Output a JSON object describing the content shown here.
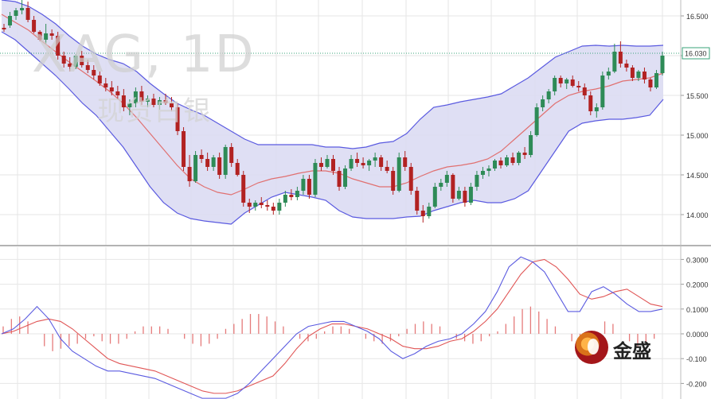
{
  "watermark": {
    "symbol": "XAG, 1D",
    "name_cn": "现货白银"
  },
  "brand": {
    "name": "金盛"
  },
  "price_panel": {
    "y_ticks": [
      "16.500",
      "16.000",
      "15.500",
      "15.000",
      "14.500",
      "14.000"
    ],
    "current_price_label": "16.030"
  },
  "macd_panel": {
    "y_ticks": [
      "0.3000",
      "0.2000",
      "0.1000",
      "0.0000",
      "-0.100",
      "-0.200"
    ]
  },
  "colors": {
    "up": "#2e8b57",
    "down": "#b22222",
    "band": "#5a5ae0",
    "band_fill": "#d9d9f2",
    "ma": "#e07070",
    "macd": "#5a5ae0",
    "signal": "#e05555",
    "hist": "#e57a7a",
    "price_line": "#3aa37a",
    "grid": "#e6e6e6",
    "text": "#333333"
  },
  "chart_data": [
    {
      "type": "candlestick",
      "indicators": [
        "Bollinger Bands (20,2)",
        "MA"
      ],
      "ylim": [
        13.65,
        16.65
      ],
      "current_price": 16.03,
      "candles": [
        [
          16.35,
          16.4,
          16.3,
          16.33
        ],
        [
          16.38,
          16.55,
          16.35,
          16.5
        ],
        [
          16.5,
          16.6,
          16.45,
          16.57
        ],
        [
          16.57,
          16.7,
          16.52,
          16.6
        ],
        [
          16.6,
          16.68,
          16.42,
          16.45
        ],
        [
          16.45,
          16.5,
          16.28,
          16.3
        ],
        [
          16.3,
          16.32,
          16.18,
          16.2
        ],
        [
          16.2,
          16.4,
          16.15,
          16.28
        ],
        [
          16.28,
          16.33,
          16.2,
          16.25
        ],
        [
          16.25,
          16.3,
          15.95,
          16.0
        ],
        [
          16.0,
          16.05,
          15.85,
          15.9
        ],
        [
          15.9,
          15.98,
          15.8,
          15.86
        ],
        [
          15.86,
          16.02,
          15.83,
          16.0
        ],
        [
          16.0,
          16.06,
          15.85,
          15.88
        ],
        [
          15.88,
          15.95,
          15.78,
          15.82
        ],
        [
          15.82,
          15.88,
          15.7,
          15.75
        ],
        [
          15.75,
          15.8,
          15.62,
          15.65
        ],
        [
          15.65,
          15.72,
          15.55,
          15.6
        ],
        [
          15.6,
          15.68,
          15.5,
          15.55
        ],
        [
          15.55,
          15.62,
          15.45,
          15.5
        ],
        [
          15.5,
          15.58,
          15.3,
          15.35
        ],
        [
          15.35,
          15.45,
          15.25,
          15.4
        ],
        [
          15.4,
          15.6,
          15.35,
          15.55
        ],
        [
          15.55,
          15.62,
          15.38,
          15.42
        ],
        [
          15.42,
          15.5,
          15.35,
          15.46
        ],
        [
          15.46,
          15.52,
          15.35,
          15.38
        ],
        [
          15.38,
          15.48,
          15.32,
          15.44
        ],
        [
          15.44,
          15.52,
          15.38,
          15.4
        ],
        [
          15.4,
          15.48,
          15.3,
          15.35
        ],
        [
          15.35,
          15.4,
          15.0,
          15.05
        ],
        [
          15.05,
          15.1,
          14.55,
          14.6
        ],
        [
          14.6,
          14.75,
          14.35,
          14.42
        ],
        [
          14.42,
          14.8,
          14.4,
          14.75
        ],
        [
          14.75,
          14.82,
          14.65,
          14.7
        ],
        [
          14.7,
          14.78,
          14.55,
          14.6
        ],
        [
          14.6,
          14.75,
          14.55,
          14.72
        ],
        [
          14.72,
          14.78,
          14.45,
          14.5
        ],
        [
          14.5,
          14.88,
          14.45,
          14.85
        ],
        [
          14.85,
          14.9,
          14.6,
          14.65
        ],
        [
          14.65,
          14.7,
          14.48,
          14.5
        ],
        [
          14.5,
          14.55,
          14.1,
          14.15
        ],
        [
          14.15,
          14.2,
          14.02,
          14.1
        ],
        [
          14.1,
          14.18,
          14.05,
          14.15
        ],
        [
          14.15,
          14.22,
          14.08,
          14.12
        ],
        [
          14.12,
          14.18,
          14.05,
          14.1
        ],
        [
          14.1,
          14.15,
          14.0,
          14.05
        ],
        [
          14.05,
          14.2,
          14.0,
          14.15
        ],
        [
          14.15,
          14.3,
          14.1,
          14.25
        ],
        [
          14.25,
          14.32,
          14.18,
          14.22
        ],
        [
          14.22,
          14.35,
          14.18,
          14.3
        ],
        [
          14.3,
          14.5,
          14.25,
          14.45
        ],
        [
          14.45,
          14.5,
          14.2,
          14.25
        ],
        [
          14.25,
          14.7,
          14.22,
          14.65
        ],
        [
          14.65,
          14.72,
          14.55,
          14.6
        ],
        [
          14.6,
          14.75,
          14.58,
          14.7
        ],
        [
          14.7,
          14.75,
          14.5,
          14.55
        ],
        [
          14.55,
          14.6,
          14.3,
          14.35
        ],
        [
          14.35,
          14.62,
          14.32,
          14.58
        ],
        [
          14.58,
          14.75,
          14.55,
          14.7
        ],
        [
          14.7,
          14.78,
          14.6,
          14.65
        ],
        [
          14.65,
          14.72,
          14.58,
          14.62
        ],
        [
          14.62,
          14.7,
          14.55,
          14.68
        ],
        [
          14.68,
          14.78,
          14.6,
          14.72
        ],
        [
          14.72,
          14.75,
          14.55,
          14.6
        ],
        [
          14.6,
          14.68,
          14.52,
          14.55
        ],
        [
          14.55,
          14.6,
          14.25,
          14.3
        ],
        [
          14.3,
          14.78,
          14.28,
          14.72
        ],
        [
          14.72,
          14.8,
          14.55,
          14.6
        ],
        [
          14.6,
          14.65,
          14.25,
          14.3
        ],
        [
          14.3,
          14.35,
          14.0,
          14.05
        ],
        [
          14.05,
          14.12,
          13.9,
          13.98
        ],
        [
          13.98,
          14.15,
          13.95,
          14.1
        ],
        [
          14.1,
          14.4,
          14.08,
          14.35
        ],
        [
          14.35,
          14.45,
          14.3,
          14.4
        ],
        [
          14.4,
          14.55,
          14.35,
          14.5
        ],
        [
          14.5,
          14.52,
          14.15,
          14.2
        ],
        [
          14.2,
          14.35,
          14.18,
          14.3
        ],
        [
          14.3,
          14.35,
          14.1,
          14.15
        ],
        [
          14.15,
          14.4,
          14.12,
          14.35
        ],
        [
          14.35,
          14.55,
          14.3,
          14.5
        ],
        [
          14.5,
          14.6,
          14.45,
          14.55
        ],
        [
          14.55,
          14.62,
          14.48,
          14.58
        ],
        [
          14.58,
          14.7,
          14.55,
          14.68
        ],
        [
          14.68,
          14.72,
          14.58,
          14.62
        ],
        [
          14.62,
          14.75,
          14.6,
          14.72
        ],
        [
          14.72,
          14.78,
          14.62,
          14.65
        ],
        [
          14.65,
          14.8,
          14.62,
          14.78
        ],
        [
          14.78,
          14.85,
          14.7,
          14.75
        ],
        [
          14.75,
          15.05,
          14.72,
          15.0
        ],
        [
          15.0,
          15.4,
          14.98,
          15.35
        ],
        [
          15.35,
          15.5,
          15.3,
          15.45
        ],
        [
          15.45,
          15.58,
          15.4,
          15.55
        ],
        [
          15.55,
          15.75,
          15.5,
          15.72
        ],
        [
          15.72,
          15.75,
          15.6,
          15.65
        ],
        [
          15.65,
          15.72,
          15.58,
          15.7
        ],
        [
          15.7,
          15.75,
          15.6,
          15.62
        ],
        [
          15.62,
          15.68,
          15.55,
          15.6
        ],
        [
          15.6,
          15.65,
          15.45,
          15.5
        ],
        [
          15.5,
          15.55,
          15.25,
          15.3
        ],
        [
          15.3,
          15.4,
          15.22,
          15.35
        ],
        [
          15.35,
          15.8,
          15.32,
          15.75
        ],
        [
          15.75,
          15.85,
          15.7,
          15.8
        ],
        [
          15.8,
          16.15,
          15.78,
          16.05
        ],
        [
          16.05,
          16.18,
          15.85,
          15.9
        ],
        [
          15.9,
          15.95,
          15.8,
          15.85
        ],
        [
          15.85,
          15.88,
          15.68,
          15.72
        ],
        [
          15.72,
          15.82,
          15.68,
          15.8
        ],
        [
          15.8,
          15.85,
          15.65,
          15.7
        ],
        [
          15.7,
          15.72,
          15.55,
          15.6
        ],
        [
          15.6,
          15.82,
          15.58,
          15.78
        ],
        [
          15.78,
          16.05,
          15.75,
          16.0
        ]
      ],
      "bollinger_upper": [
        16.7,
        16.68,
        16.62,
        16.52,
        16.4,
        16.25,
        16.12,
        16.02,
        15.95,
        15.9,
        15.8,
        15.65,
        15.52,
        15.4,
        15.32,
        15.25,
        15.15,
        15.05,
        14.95,
        14.88,
        14.88,
        14.88,
        14.88,
        14.88,
        14.85,
        14.85,
        14.83,
        14.85,
        14.9,
        14.92,
        15.02,
        15.2,
        15.35,
        15.38,
        15.42,
        15.45,
        15.48,
        15.52,
        15.62,
        15.72,
        15.85,
        15.98,
        16.05,
        16.12,
        16.13,
        16.12,
        16.13,
        16.12,
        16.12,
        16.13
      ],
      "bollinger_lower": [
        16.3,
        16.2,
        16.05,
        15.9,
        15.75,
        15.58,
        15.4,
        15.25,
        15.05,
        14.85,
        14.6,
        14.35,
        14.15,
        14.02,
        13.95,
        13.92,
        13.9,
        13.88,
        14.02,
        14.12,
        14.22,
        14.28,
        14.25,
        14.22,
        14.18,
        14.05,
        13.97,
        13.95,
        13.95,
        13.95,
        13.97,
        13.98,
        14.05,
        14.1,
        14.15,
        14.18,
        14.15,
        14.15,
        14.2,
        14.3,
        14.55,
        14.8,
        15.05,
        15.15,
        15.18,
        15.2,
        15.2,
        15.22,
        15.25,
        15.45
      ],
      "moving_average": [
        16.52,
        16.42,
        16.32,
        16.18,
        16.05,
        15.92,
        15.8,
        15.68,
        15.55,
        15.4,
        15.22,
        15.02,
        14.82,
        14.62,
        14.45,
        14.35,
        14.28,
        14.25,
        14.32,
        14.4,
        14.45,
        14.48,
        14.52,
        14.55,
        14.55,
        14.52,
        14.45,
        14.4,
        14.35,
        14.35,
        14.4,
        14.48,
        14.55,
        14.6,
        14.62,
        14.65,
        14.7,
        14.8,
        14.95,
        15.1,
        15.25,
        15.4,
        15.5,
        15.55,
        15.58,
        15.62,
        15.68,
        15.7,
        15.72,
        15.78
      ]
    },
    {
      "type": "macd",
      "ylim": [
        -0.24,
        0.33
      ],
      "macd": [
        0.0,
        0.02,
        0.06,
        0.11,
        0.06,
        -0.02,
        -0.07,
        -0.1,
        -0.13,
        -0.15,
        -0.15,
        -0.16,
        -0.17,
        -0.18,
        -0.2,
        -0.22,
        -0.24,
        -0.26,
        -0.26,
        -0.26,
        -0.24,
        -0.2,
        -0.15,
        -0.1,
        -0.05,
        0.0,
        0.03,
        0.04,
        0.05,
        0.05,
        0.03,
        0.01,
        -0.02,
        -0.07,
        -0.1,
        -0.08,
        -0.05,
        -0.03,
        -0.02,
        0.0,
        0.04,
        0.09,
        0.17,
        0.27,
        0.31,
        0.29,
        0.25,
        0.17,
        0.09,
        0.09,
        0.17,
        0.19,
        0.16,
        0.12,
        0.09,
        0.09,
        0.1
      ],
      "signal": [
        0.0,
        0.01,
        0.03,
        0.05,
        0.06,
        0.05,
        0.02,
        -0.02,
        -0.06,
        -0.1,
        -0.12,
        -0.13,
        -0.14,
        -0.15,
        -0.17,
        -0.19,
        -0.21,
        -0.23,
        -0.24,
        -0.24,
        -0.23,
        -0.21,
        -0.19,
        -0.17,
        -0.12,
        -0.06,
        -0.01,
        0.02,
        0.04,
        0.04,
        0.03,
        0.02,
        0.0,
        -0.02,
        -0.05,
        -0.06,
        -0.06,
        -0.05,
        -0.03,
        -0.02,
        0.01,
        0.05,
        0.1,
        0.17,
        0.24,
        0.29,
        0.3,
        0.27,
        0.22,
        0.16,
        0.14,
        0.15,
        0.17,
        0.18,
        0.15,
        0.12,
        0.11
      ],
      "histogram": [
        0.03,
        0.06,
        0.07,
        0.05,
        0.0,
        -0.05,
        -0.07,
        -0.06,
        -0.05,
        -0.04,
        -0.02,
        -0.01,
        -0.03,
        -0.04,
        -0.04,
        -0.02,
        0.01,
        0.03,
        0.03,
        0.03,
        0.02,
        0.0,
        -0.02,
        -0.04,
        -0.05,
        -0.04,
        -0.02,
        0.02,
        0.04,
        0.06,
        0.08,
        0.08,
        0.07,
        0.05,
        0.03,
        0.0,
        -0.02,
        -0.03,
        -0.02,
        0.01,
        0.03,
        0.03,
        0.02,
        0.0,
        -0.02,
        -0.03,
        -0.04,
        -0.03,
        -0.01,
        0.02,
        0.04,
        0.05,
        0.04,
        0.03,
        0.0,
        -0.02,
        -0.03,
        -0.04,
        -0.03,
        -0.01,
        0.01,
        0.04,
        0.07,
        0.1,
        0.11,
        0.09,
        0.06,
        0.03,
        0.0,
        -0.03,
        -0.05,
        -0.03,
        0.0,
        0.05,
        0.04,
        0.0,
        -0.03,
        -0.05,
        -0.04,
        -0.02,
        0.0
      ]
    }
  ]
}
